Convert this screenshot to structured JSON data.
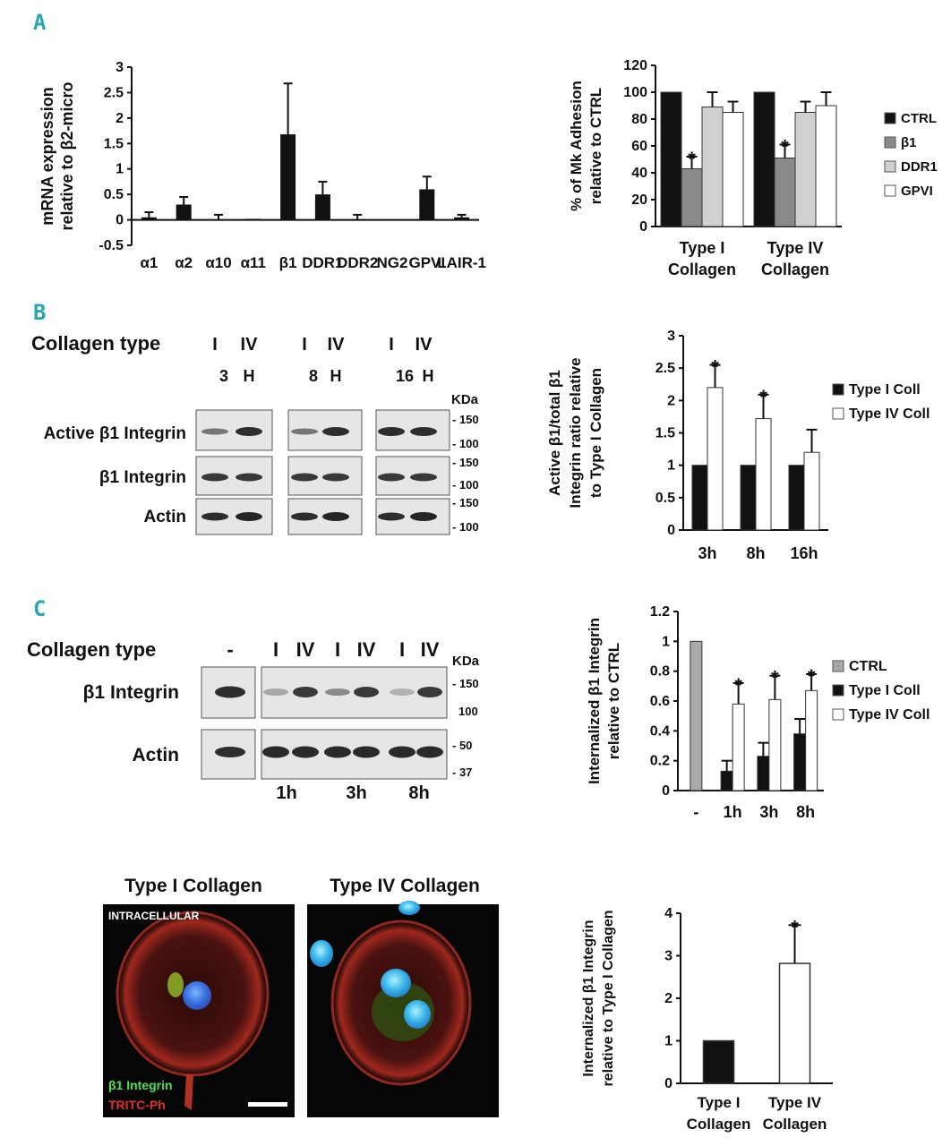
{
  "panels": {
    "A": "A",
    "B": "B",
    "C": "C"
  },
  "blot_B": {
    "collagen_label": "Collagen type",
    "lanes": [
      "I",
      "IV",
      "I",
      "IV",
      "I",
      "IV"
    ],
    "times": [
      "3",
      "H",
      "8",
      "H",
      "16",
      "H"
    ],
    "kda": "KDa",
    "rows": [
      "Active β1 Integrin",
      "β1 Integrin",
      "Actin"
    ],
    "markers": [
      "- 150",
      "- 100",
      "- 150",
      "- 100",
      "- 150",
      "- 100"
    ]
  },
  "blot_C": {
    "collagen_label": "Collagen type",
    "lanes": [
      "-",
      "I",
      "IV",
      "I",
      "IV",
      "I",
      "IV"
    ],
    "times": [
      "1h",
      "3h",
      "8h"
    ],
    "kda": "KDa",
    "rows": [
      "β1 Integrin",
      "Actin"
    ],
    "markers": [
      "- 150",
      "100",
      "- 50",
      "- 37"
    ]
  },
  "micro": {
    "titles": [
      "Type I Collagen",
      "Type IV Collagen"
    ],
    "intracellular": "INTRACELLULAR",
    "stain_green": "β1 Integrin",
    "stain_red": "TRITC-Ph"
  },
  "colors": {
    "black": "#111111",
    "dark_gray": "#8a8a8a",
    "light_gray": "#d0d0d0",
    "white": "#ffffff",
    "ctrl_gray": "#a9a9a9",
    "panel_label": "#2aa6b0"
  },
  "chart_data": [
    {
      "id": "A1",
      "type": "bar",
      "ylabel": [
        "mRNA expression",
        "relative to β2-micro"
      ],
      "categories": [
        "α1",
        "α2",
        "α10",
        "α11",
        "β1",
        "DDR1",
        "DDR2",
        "NG2",
        "GPVI",
        "LAIR-1"
      ],
      "values": [
        0.05,
        0.3,
        0.0,
        0.02,
        1.68,
        0.5,
        0.0,
        0.0,
        0.6,
        0.05
      ],
      "errors": [
        0.1,
        0.15,
        0.1,
        0.0,
        1.0,
        0.25,
        0.1,
        0.0,
        0.25,
        0.05
      ],
      "ylim": [
        -0.5,
        3
      ],
      "yticks": [
        "-0.5",
        "0",
        "0.5",
        "1",
        "1.5",
        "2",
        "2.5",
        "3"
      ]
    },
    {
      "id": "A2",
      "type": "bar",
      "ylabel": [
        "% of Mk Adhesion",
        "relative to CTRL"
      ],
      "categories": [
        [
          "Type I",
          "Collagen"
        ],
        [
          "Type IV",
          "Collagen"
        ]
      ],
      "series": [
        {
          "name": "CTRL",
          "values": [
            100,
            100
          ],
          "errors": [
            0,
            0
          ]
        },
        {
          "name": "β1",
          "values": [
            43,
            51
          ],
          "errors": [
            9,
            10
          ]
        },
        {
          "name": "DDR1",
          "values": [
            89,
            85
          ],
          "errors": [
            11,
            8
          ]
        },
        {
          "name": "GPVI",
          "values": [
            85,
            90
          ],
          "errors": [
            8,
            10
          ]
        }
      ],
      "significant": [
        [
          false,
          true,
          false,
          false
        ],
        [
          false,
          true,
          false,
          false
        ]
      ],
      "ylim": [
        0,
        120
      ],
      "yticks": [
        "0",
        "20",
        "40",
        "60",
        "80",
        "100",
        "120"
      ],
      "legend": "right"
    },
    {
      "id": "B",
      "type": "bar",
      "ylabel": [
        "Active β1/total β1",
        "Integrin ratio relative",
        "to Type I Collagen"
      ],
      "categories": [
        "3h",
        "8h",
        "16h"
      ],
      "series": [
        {
          "name": "Type I Coll",
          "values": [
            1,
            1,
            1
          ],
          "errors": [
            0,
            0,
            0
          ]
        },
        {
          "name": "Type IV Coll",
          "values": [
            2.2,
            1.72,
            1.2
          ],
          "errors": [
            0.35,
            0.37,
            0.35
          ]
        }
      ],
      "significant": [
        [
          false,
          true
        ],
        [
          false,
          true
        ],
        [
          false,
          false
        ]
      ],
      "ylim": [
        0,
        3
      ],
      "yticks": [
        "0",
        "0.5",
        "1",
        "1.5",
        "2",
        "2.5",
        "3"
      ],
      "legend": "right"
    },
    {
      "id": "C1",
      "type": "bar",
      "ylabel": [
        "Internalized β1 Integrin",
        "relative to CTRL"
      ],
      "categories": [
        "-",
        "1h",
        "3h",
        "8h"
      ],
      "series": [
        {
          "name": "CTRL",
          "values": [
            1,
            null,
            null,
            null
          ],
          "errors": [
            0,
            0,
            0,
            0
          ]
        },
        {
          "name": "Type I Coll",
          "values": [
            null,
            0.13,
            0.23,
            0.38
          ],
          "errors": [
            0,
            0.07,
            0.09,
            0.1
          ]
        },
        {
          "name": "Type IV Coll",
          "values": [
            null,
            0.58,
            0.61,
            0.67
          ],
          "errors": [
            0,
            0.14,
            0.16,
            0.11
          ]
        }
      ],
      "significant": [
        [
          false,
          false,
          false
        ],
        [
          false,
          false,
          true
        ],
        [
          false,
          false,
          true
        ],
        [
          false,
          false,
          true
        ]
      ],
      "ylim": [
        0,
        1.2
      ],
      "yticks": [
        "0",
        "0.2",
        "0.4",
        "0.6",
        "0.8",
        "1",
        "1.2"
      ],
      "legend": "right"
    },
    {
      "id": "C2",
      "type": "bar",
      "ylabel": [
        "Internalized β1 Integrin",
        "relative to Type I Collagen"
      ],
      "categories": [
        [
          "Type I",
          "Collagen"
        ],
        [
          "Type IV",
          "Collagen"
        ]
      ],
      "values": [
        1,
        2.82
      ],
      "errors": [
        0,
        0.9
      ],
      "significant": [
        false,
        true
      ],
      "ylim": [
        0,
        4
      ],
      "yticks": [
        "0",
        "1",
        "2",
        "3",
        "4"
      ]
    }
  ]
}
